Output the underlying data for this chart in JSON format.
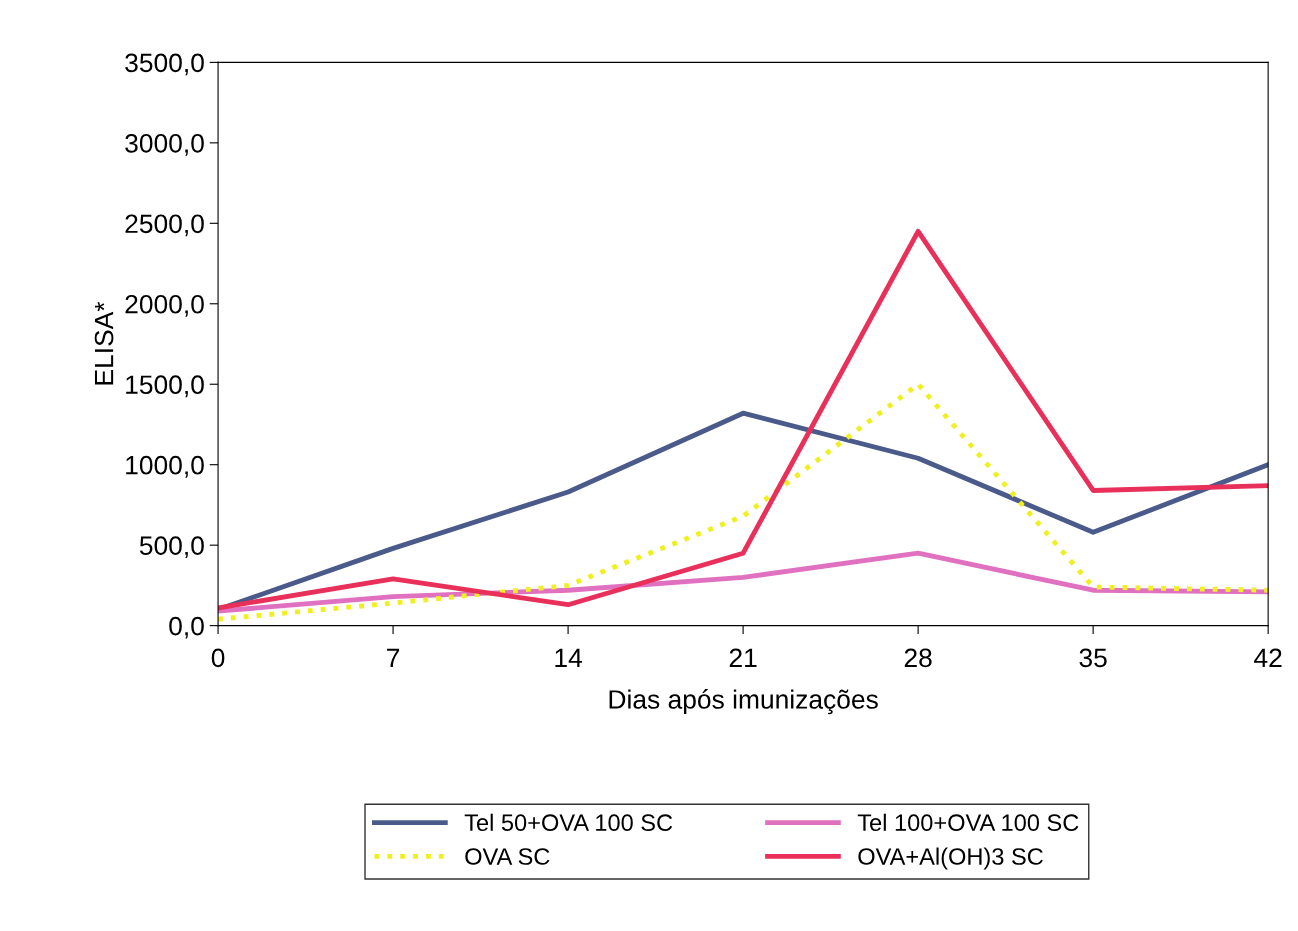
{
  "chart_data": {
    "type": "line",
    "xlabel": "Dias após imunizações",
    "ylabel": "ELISA*",
    "x": [
      0,
      7,
      14,
      21,
      28,
      35,
      42
    ],
    "series": [
      {
        "name": "Tel 50+OVA 100 SC",
        "color": "#4a5a8a",
        "values": [
          100,
          480,
          830,
          1320,
          1040,
          580,
          1000
        ]
      },
      {
        "name": "Tel 100+OVA 100 SC",
        "color": "#e070c0",
        "values": [
          90,
          180,
          220,
          300,
          450,
          220,
          210
        ]
      },
      {
        "name": "OVA SC",
        "color": "#f0f020",
        "line_style": "dotted",
        "values": [
          40,
          140,
          250,
          680,
          1500,
          240,
          220
        ]
      },
      {
        "name": "OVA+Al(OH)3 SC",
        "color": "#e8305a",
        "values": [
          110,
          290,
          130,
          450,
          2450,
          840,
          870
        ]
      }
    ],
    "xlim": [
      0,
      42
    ],
    "xticks": [
      0,
      7,
      14,
      21,
      28,
      35,
      42
    ],
    "ylim": [
      0,
      3500
    ],
    "yticks": [
      {
        "value": 0,
        "label": "0,0"
      },
      {
        "value": 500,
        "label": "500,0"
      },
      {
        "value": 1000,
        "label": "1000,0"
      },
      {
        "value": 1500,
        "label": "1500,0"
      },
      {
        "value": 2000,
        "label": "2000,0"
      },
      {
        "value": 2500,
        "label": "2500,0"
      },
      {
        "value": 3000,
        "label": "3000,0"
      },
      {
        "value": 3500,
        "label": "3500,0"
      }
    ],
    "grid": false,
    "legend": "bottom",
    "line_style": "solid",
    "marker": "none"
  }
}
